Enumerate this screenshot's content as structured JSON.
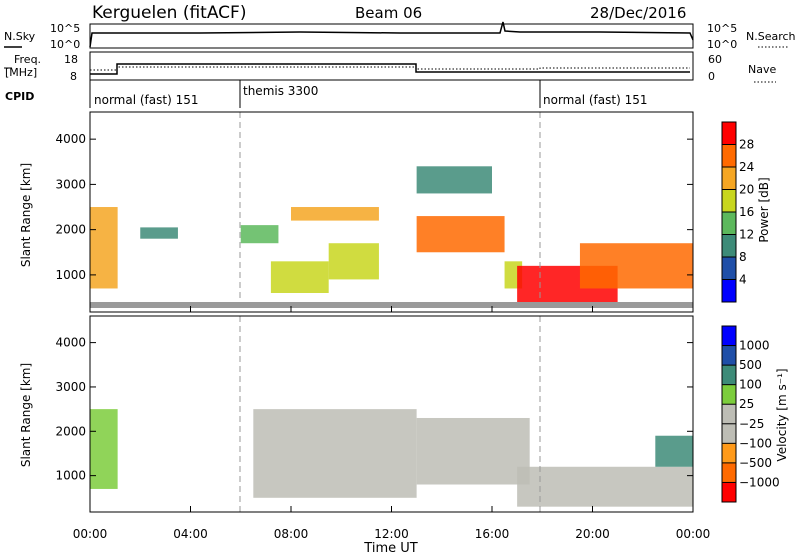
{
  "header": {
    "station": "Kerguelen (fitACF)",
    "beam": "Beam 06",
    "date": "28/Dec/2016"
  },
  "params": {
    "nsky_label": "N.Sky",
    "nsearch_label": "N.Search",
    "nsky_ticks": [
      "10^5",
      "10^0"
    ],
    "nsearch_ticks": [
      "10^5",
      "10^0"
    ],
    "freq_label_line1": "Freq.",
    "freq_label_line2": "[MHz]",
    "freq_ticks": [
      "18",
      "8"
    ],
    "nave_label": "Nave",
    "nave_ticks": [
      "60",
      "0"
    ],
    "cpid_label": "CPID",
    "cpid_segments": [
      {
        "label": "normal (fast) 151",
        "start_hour": 0
      },
      {
        "label": "themis 3300",
        "start_hour": 6
      },
      {
        "label": "normal (fast) 151",
        "start_hour": 18
      }
    ]
  },
  "x_axis": {
    "label": "Time UT",
    "ticks": [
      "00:00",
      "04:00",
      "08:00",
      "12:00",
      "16:00",
      "20:00",
      "00:00"
    ],
    "range_hours": [
      0,
      24
    ]
  },
  "colors": {
    "power": [
      "#0000ff",
      "#1f4fa8",
      "#3d8b78",
      "#5cb85c",
      "#c8d61e",
      "#f5a623",
      "#ff6a00",
      "#ff0000"
    ],
    "velocity": [
      "#ff0000",
      "#ff6a00",
      "#ff9a1a",
      "#bdbdb5",
      "#bdbdb5",
      "#7ccd3c",
      "#3d8b78",
      "#1f4fa8",
      "#0000ff"
    ],
    "ground": "#9a9a9a"
  },
  "chart_data": [
    {
      "type": "heatmap",
      "ylabel": "Slant Range [km]",
      "ylim": [
        180,
        4600
      ],
      "yticks": [
        1000,
        2000,
        3000,
        4000
      ],
      "colorbar": {
        "label": "Power [dB]",
        "tick_labels": [
          "28",
          "24",
          "20",
          "16",
          "12",
          "8",
          "4"
        ],
        "range": [
          0,
          32
        ]
      },
      "regions": [
        {
          "t0": 0.0,
          "t1": 1.1,
          "r0": 700,
          "r1": 2500,
          "level": 5
        },
        {
          "t0": 2.0,
          "t1": 3.5,
          "r0": 1800,
          "r1": 2050,
          "level": 2
        },
        {
          "t0": 6.0,
          "t1": 7.5,
          "r0": 1700,
          "r1": 2100,
          "level": 3
        },
        {
          "t0": 8.0,
          "t1": 11.5,
          "r0": 2200,
          "r1": 2500,
          "level": 5
        },
        {
          "t0": 7.2,
          "t1": 9.5,
          "r0": 600,
          "r1": 1300,
          "level": 4
        },
        {
          "t0": 9.5,
          "t1": 11.5,
          "r0": 900,
          "r1": 1700,
          "level": 4
        },
        {
          "t0": 13.0,
          "t1": 16.5,
          "r0": 1500,
          "r1": 2300,
          "level": 6
        },
        {
          "t0": 16.5,
          "t1": 17.2,
          "r0": 700,
          "r1": 1300,
          "level": 4
        },
        {
          "t0": 17.0,
          "t1": 21.0,
          "r0": 300,
          "r1": 1200,
          "level": 7
        },
        {
          "t0": 19.5,
          "t1": 24.0,
          "r0": 700,
          "r1": 1700,
          "level": 6
        },
        {
          "t0": 13.0,
          "t1": 16.0,
          "r0": 2800,
          "r1": 3400,
          "level": 2
        }
      ]
    },
    {
      "type": "heatmap",
      "ylabel": "Slant Range [km]",
      "ylim": [
        180,
        4600
      ],
      "yticks": [
        1000,
        2000,
        3000,
        4000
      ],
      "colorbar": {
        "label": "Velocity [m s⁻¹]",
        "tick_labels": [
          "1000",
          "500",
          "100",
          "25",
          "−25",
          "−100",
          "−500",
          "−1000"
        ],
        "range": [
          -1000,
          1000
        ]
      },
      "regions": [
        {
          "t0": 0.0,
          "t1": 1.1,
          "r0": 700,
          "r1": 2500,
          "level": 5
        },
        {
          "t0": 6.5,
          "t1": 13.0,
          "r0": 500,
          "r1": 2500,
          "level": 3
        },
        {
          "t0": 13.0,
          "t1": 17.5,
          "r0": 800,
          "r1": 2300,
          "level": 3
        },
        {
          "t0": 17.0,
          "t1": 24.0,
          "r0": 300,
          "r1": 1200,
          "level": 4
        },
        {
          "t0": 22.5,
          "t1": 24.0,
          "r0": 1200,
          "r1": 1900,
          "level": 6
        }
      ]
    }
  ]
}
